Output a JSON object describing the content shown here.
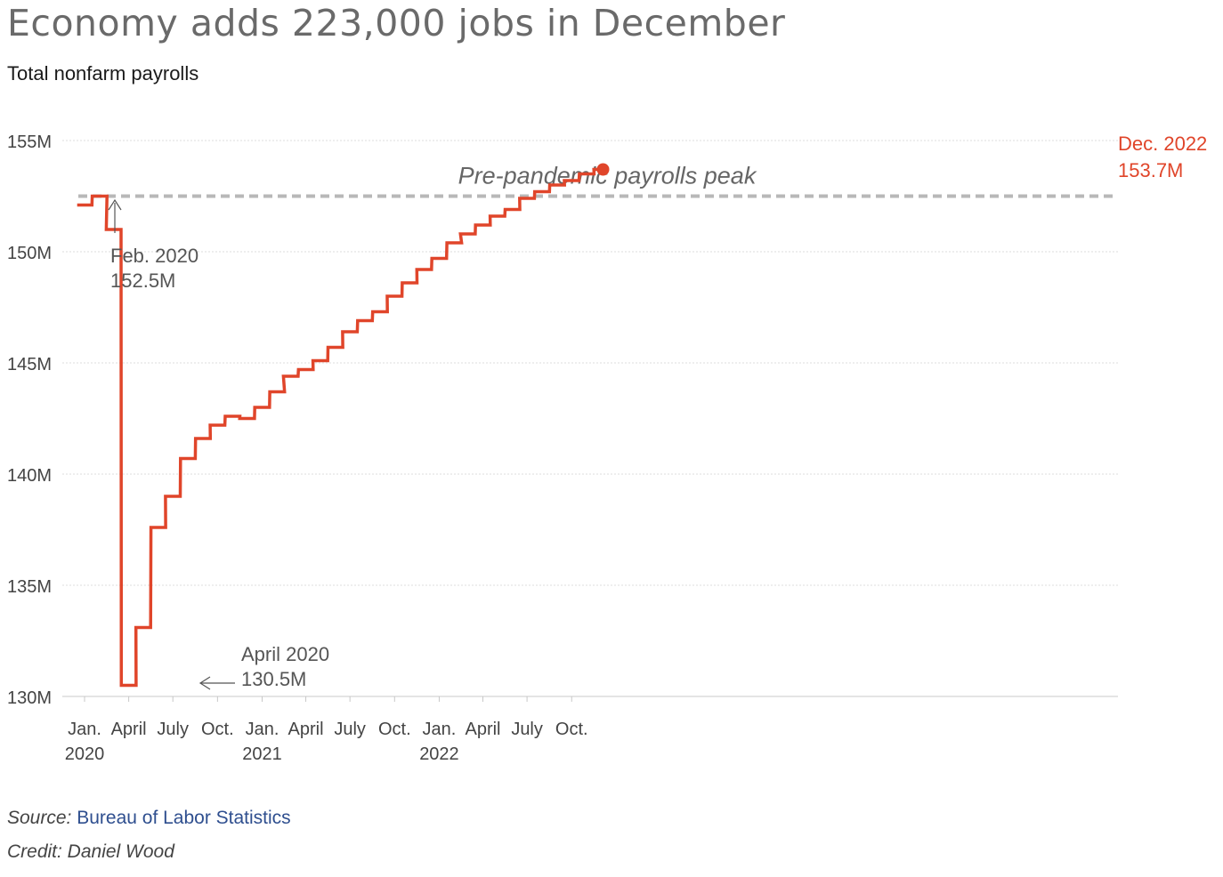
{
  "title": "Economy adds 223,000 jobs in December",
  "subtitle": "Total nonfarm payrolls",
  "chart_data": {
    "type": "line",
    "step": true,
    "y_unit": "millions",
    "ylim": [
      129.5,
      156
    ],
    "xlim": [
      "2019-12-20",
      "2023-01-30"
    ],
    "y_ticks": [
      130,
      135,
      140,
      145,
      150,
      155
    ],
    "y_tick_labels": [
      "130M",
      "135M",
      "140M",
      "145M",
      "150M",
      "155M"
    ],
    "x_ticks": [
      {
        "date": "2020-01-01",
        "label": "Jan.",
        "year": "2020"
      },
      {
        "date": "2020-04-01",
        "label": "April",
        "year": ""
      },
      {
        "date": "2020-07-01",
        "label": "July",
        "year": ""
      },
      {
        "date": "2020-10-01",
        "label": "Oct.",
        "year": ""
      },
      {
        "date": "2021-01-01",
        "label": "Jan.",
        "year": "2021"
      },
      {
        "date": "2021-04-01",
        "label": "April",
        "year": ""
      },
      {
        "date": "2021-07-01",
        "label": "July",
        "year": ""
      },
      {
        "date": "2021-10-01",
        "label": "Oct.",
        "year": ""
      },
      {
        "date": "2022-01-01",
        "label": "Jan.",
        "year": "2022"
      },
      {
        "date": "2022-04-01",
        "label": "April",
        "year": ""
      },
      {
        "date": "2022-07-01",
        "label": "July",
        "year": ""
      },
      {
        "date": "2022-10-01",
        "label": "Oct.",
        "year": ""
      }
    ],
    "grid": true,
    "series": [
      {
        "color": "#e0452a",
        "x": [
          "2020-01",
          "2020-02",
          "2020-03",
          "2020-04",
          "2020-05",
          "2020-06",
          "2020-07",
          "2020-08",
          "2020-09",
          "2020-10",
          "2020-11",
          "2020-12",
          "2021-01",
          "2021-02",
          "2021-03",
          "2021-04",
          "2021-05",
          "2021-06",
          "2021-07",
          "2021-08",
          "2021-09",
          "2021-10",
          "2021-11",
          "2021-12",
          "2022-01",
          "2022-02",
          "2022-03",
          "2022-04",
          "2022-05",
          "2022-06",
          "2022-07",
          "2022-08",
          "2022-09",
          "2022-10",
          "2022-11",
          "2022-12"
        ],
        "values": [
          152.1,
          152.5,
          151.0,
          130.5,
          133.1,
          137.6,
          139.0,
          140.7,
          141.6,
          142.2,
          142.6,
          142.5,
          143.0,
          143.7,
          144.4,
          144.7,
          145.1,
          145.7,
          146.4,
          146.9,
          147.3,
          148.0,
          148.6,
          149.2,
          149.7,
          150.4,
          150.8,
          151.2,
          151.6,
          151.9,
          152.4,
          152.7,
          153.0,
          153.2,
          153.5,
          153.7
        ]
      }
    ],
    "reference_line": {
      "value": 152.5,
      "label": "Pre-pandemic payrolls peak",
      "color": "#b8b8b8"
    },
    "annotations": [
      {
        "line1": "Feb. 2020",
        "line2": "152.5M"
      },
      {
        "line1": "April 2020",
        "line2": "130.5M"
      },
      {
        "line1": "Dec. 2022",
        "line2": "153.7M",
        "color": "#e0452a"
      }
    ]
  },
  "source": {
    "label": "Source:",
    "agency": "Bureau of Labor Statistics"
  },
  "credit": "Credit: Daniel Wood"
}
